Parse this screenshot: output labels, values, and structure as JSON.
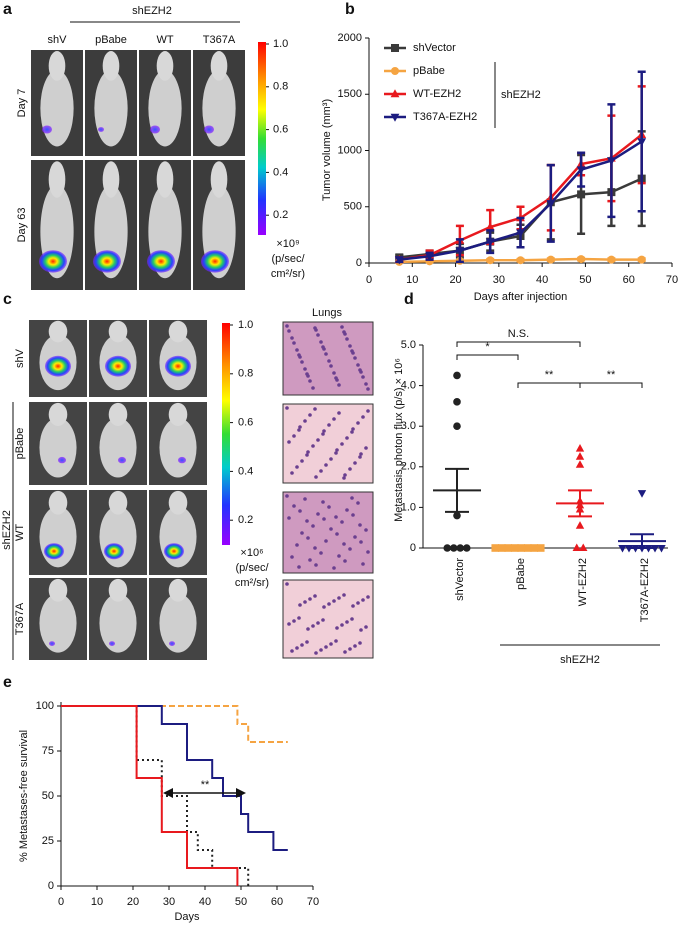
{
  "panels": {
    "a": {
      "label": "a",
      "group_label": "shEZH2",
      "columns": [
        "shV",
        "pBabe",
        "WT",
        "T367A"
      ],
      "rows": [
        "Day 7",
        "Day 63"
      ],
      "colorbar": {
        "ticks": [
          {
            "value": 1,
            "label": "1.0"
          },
          {
            "value": 0.8,
            "label": "0.8"
          },
          {
            "value": 0.6,
            "label": "0.6"
          },
          {
            "value": 0.4,
            "label": "0.4"
          },
          {
            "value": 0.2,
            "label": "0.2"
          }
        ],
        "unit": [
          "×10⁹",
          "(p/sec/",
          "cm²/sr)"
        ]
      }
    },
    "c": {
      "label": "c",
      "group_label": "shEZH2",
      "rows": [
        "shV",
        "pBabe",
        "WT",
        "T367A"
      ],
      "histology_title": "Lungs",
      "colorbar": {
        "ticks": [
          {
            "value": 1,
            "label": "1.0"
          },
          {
            "value": 0.8,
            "label": "0.8"
          },
          {
            "value": 0.6,
            "label": "0.6"
          },
          {
            "value": 0.4,
            "label": "0.4"
          },
          {
            "value": 0.2,
            "label": "0.2"
          }
        ],
        "unit": [
          "×10⁶",
          "(p/sec/",
          "cm²/sr)"
        ]
      }
    }
  },
  "chart_data": [
    {
      "type": "line",
      "panel": "b",
      "xlabel": "Days after injection",
      "ylabel": "Tumor volume (mm³)",
      "x": [
        7,
        14,
        21,
        28,
        35,
        42,
        49,
        56,
        63
      ],
      "series": [
        {
          "name": "shVector",
          "color": "#3a3a3a",
          "marker": "square",
          "values": [
            50,
            80,
            110,
            190,
            240,
            540,
            610,
            630,
            750
          ],
          "errors": [
            20,
            30,
            60,
            80,
            100,
            330,
            350,
            300,
            420
          ]
        },
        {
          "name": "pBabe",
          "color": "#f5a442",
          "marker": "circle",
          "values": [
            10,
            15,
            20,
            25,
            25,
            30,
            35,
            30,
            30
          ],
          "errors": [
            5,
            5,
            5,
            10,
            10,
            10,
            10,
            10,
            10
          ]
        },
        {
          "name": "WT-EZH2",
          "color": "#e8191e",
          "marker": "triangle",
          "values": [
            30,
            70,
            200,
            320,
            400,
            580,
            880,
            930,
            1140
          ],
          "errors": [
            20,
            40,
            130,
            150,
            100,
            290,
            100,
            380,
            430
          ]
        },
        {
          "name": "T367A-EZH2",
          "color": "#1c1c80",
          "marker": "triangle-down",
          "values": [
            30,
            60,
            110,
            190,
            270,
            530,
            830,
            910,
            1080
          ],
          "errors": [
            20,
            30,
            100,
            100,
            130,
            340,
            150,
            500,
            620
          ]
        }
      ],
      "legend_group": "shEZH2",
      "xlim": [
        0,
        70
      ],
      "xticks": [
        0,
        10,
        20,
        30,
        40,
        50,
        60,
        70
      ],
      "ylim": [
        0,
        2000
      ],
      "yticks": [
        0,
        500,
        1000,
        1500,
        2000
      ]
    },
    {
      "type": "dot",
      "panel": "d",
      "ylabel": "Metastasis photon flux (p/s) × 10⁶",
      "categories": [
        "shVector",
        "pBabe",
        "WT-EZH2",
        "T367A-EZH2"
      ],
      "colors": [
        "#222222",
        "#f5a442",
        "#e8191e",
        "#1c1c80"
      ],
      "markers": [
        "circle",
        "square",
        "triangle",
        "triangle-down"
      ],
      "points": [
        [
          0,
          0,
          0,
          0,
          0.8,
          3.0,
          3.6,
          4.25
        ],
        [
          0,
          0,
          0,
          0,
          0,
          0,
          0,
          0
        ],
        [
          0,
          0,
          0.55,
          0.95,
          1.05,
          1.15,
          2.05,
          2.25,
          2.45
        ],
        [
          0,
          0,
          0,
          0,
          0,
          0,
          0,
          1.35
        ]
      ],
      "mean": [
        1.42,
        0,
        1.1,
        0.17
      ],
      "sem": [
        0.53,
        0,
        0.32,
        0.17
      ],
      "significance": [
        "N.S.",
        "*",
        "**",
        "**"
      ],
      "group_label": "shEZH2",
      "ylim": [
        0,
        5
      ],
      "yticks": [
        0,
        {
          "value": 1,
          "label": "1.0"
        },
        {
          "value": 2,
          "label": "2.0"
        },
        {
          "value": 3,
          "label": "3.0"
        },
        {
          "value": 4,
          "label": "4.0"
        },
        {
          "value": 5,
          "label": "5.0"
        }
      ]
    },
    {
      "type": "step",
      "panel": "e",
      "xlabel": "Days",
      "ylabel": "% Metastases-free survival",
      "series": [
        {
          "color": "#f5a442",
          "style": "dashed",
          "x": [
            0,
            49,
            52,
            63
          ],
          "values": [
            100,
            90,
            80,
            80
          ]
        },
        {
          "color": "#1c1c80",
          "style": "solid",
          "x": [
            0,
            28,
            35,
            42,
            45,
            50,
            52,
            59,
            63
          ],
          "values": [
            100,
            90,
            70,
            60,
            50,
            40,
            30,
            20,
            20
          ]
        },
        {
          "color": "#222222",
          "style": "dotted",
          "x": [
            0,
            21,
            28,
            35,
            38,
            42,
            52
          ],
          "values": [
            100,
            70,
            50,
            30,
            20,
            10,
            0
          ]
        },
        {
          "color": "#e8191e",
          "style": "solid",
          "x": [
            0,
            21,
            28,
            35,
            49
          ],
          "values": [
            100,
            60,
            30,
            10,
            0
          ]
        }
      ],
      "annotation": "**",
      "xlim": [
        0,
        70
      ],
      "xticks": [
        0,
        10,
        20,
        30,
        40,
        50,
        60,
        70
      ],
      "ylim": [
        0,
        100
      ],
      "yticks": [
        0,
        25,
        50,
        75,
        100
      ]
    }
  ]
}
